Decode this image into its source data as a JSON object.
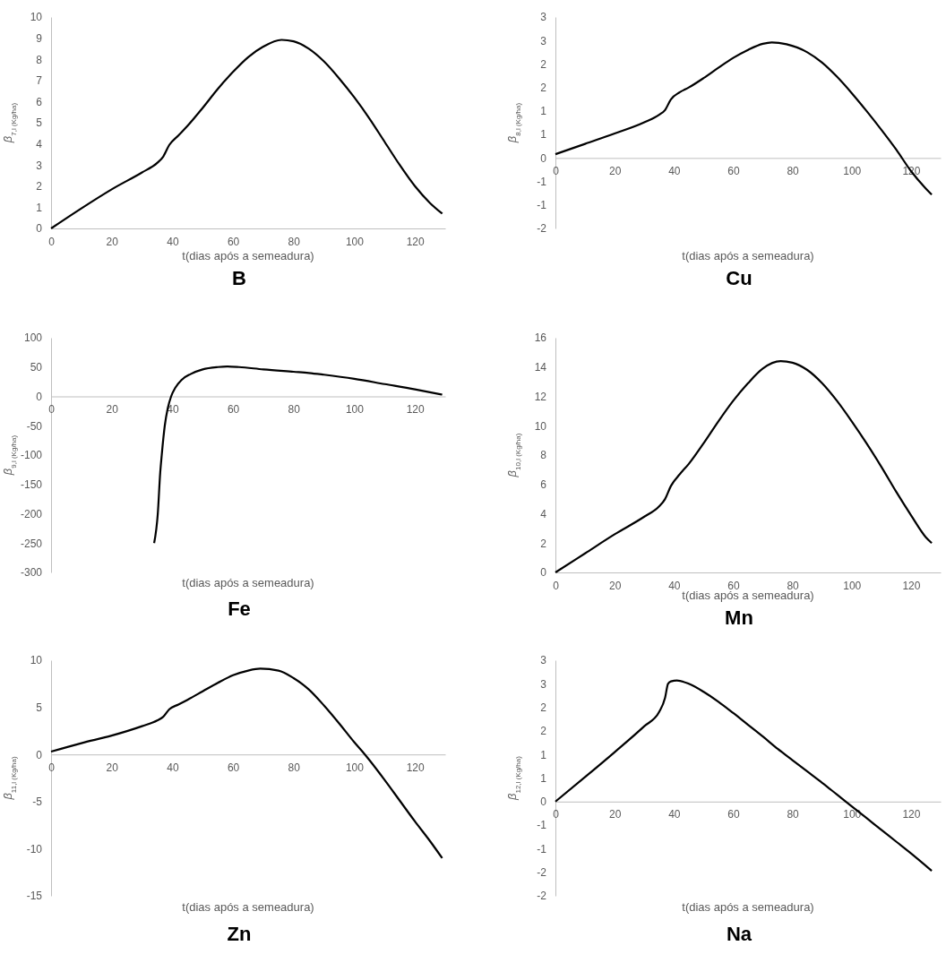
{
  "chart_data": [
    {
      "type": "line",
      "title": "B",
      "xlabel": "t(dias após a semeadura)",
      "ylabel": "β$_{7,l (Kg/ha)}$",
      "xlim": [
        0,
        130
      ],
      "xticks": [
        0,
        20,
        40,
        60,
        80,
        100,
        120
      ],
      "ylim": [
        0,
        10
      ],
      "yticks": [
        0,
        1,
        2,
        3,
        4,
        5,
        6,
        7,
        8,
        9,
        10
      ],
      "series": [
        {
          "color": "#000000",
          "x": [
            0,
            10,
            20,
            30,
            35,
            37,
            39,
            42,
            45,
            50,
            55,
            60,
            65,
            70,
            76,
            80,
            85,
            90,
            95,
            100,
            105,
            110,
            115,
            120,
            125,
            129
          ],
          "values": [
            0,
            0.95,
            1.85,
            2.65,
            3.1,
            3.4,
            3.95,
            4.4,
            4.85,
            5.7,
            6.6,
            7.4,
            8.1,
            8.6,
            8.92,
            8.85,
            8.5,
            7.9,
            7.1,
            6.2,
            5.2,
            4.1,
            3.0,
            2.0,
            1.2,
            0.7
          ]
        }
      ]
    },
    {
      "type": "line",
      "title": "Cu",
      "xlabel": "t(dias após a semeadura)",
      "ylabel": "β$_{8,l (Kg/ha)}$",
      "xlim": [
        0,
        130
      ],
      "xticks": [
        0,
        20,
        40,
        60,
        80,
        100,
        120
      ],
      "ylim": [
        -1.5,
        3
      ],
      "yticks": [
        {
          "value": -1.5,
          "label": "-2"
        },
        {
          "value": -1,
          "label": "-1"
        },
        {
          "value": -0.5,
          "label": "-1"
        },
        0,
        {
          "value": 0.5,
          "label": "1"
        },
        1,
        {
          "value": 1.5,
          "label": "2"
        },
        2,
        {
          "value": 2.5,
          "label": "3"
        },
        3
      ],
      "series": [
        {
          "color": "#000000",
          "x": [
            0,
            10,
            20,
            30,
            35,
            37,
            39,
            42,
            45,
            50,
            55,
            60,
            65,
            70,
            73,
            78,
            85,
            90,
            95,
            100,
            105,
            110,
            115,
            120,
            125,
            127
          ],
          "values": [
            0.08,
            0.3,
            0.52,
            0.76,
            0.92,
            1.02,
            1.25,
            1.4,
            1.5,
            1.7,
            1.92,
            2.13,
            2.3,
            2.43,
            2.46,
            2.42,
            2.25,
            2.03,
            1.73,
            1.38,
            1.0,
            0.6,
            0.18,
            -0.28,
            -0.65,
            -0.78
          ]
        }
      ]
    },
    {
      "type": "line",
      "title": "Fe",
      "xlabel": "t(dias após a semeadura)",
      "ylabel": "β$_{9,l (Kg/ha)}$",
      "xlim": [
        0,
        130
      ],
      "xticks": [
        0,
        20,
        40,
        60,
        80,
        100,
        120
      ],
      "ylim": [
        -300,
        100
      ],
      "yticks": [
        -300,
        -250,
        -200,
        -150,
        -100,
        -50,
        0,
        50,
        100
      ],
      "series": [
        {
          "color": "#000000",
          "x": [
            34,
            35.2,
            36,
            36.5,
            37.5,
            38.5,
            39.6,
            41,
            43,
            46,
            50,
            55,
            58,
            62,
            70,
            80,
            85,
            90,
            100,
            110,
            120,
            129
          ],
          "values": [
            -250,
            -200,
            -130,
            -100,
            -50,
            -20,
            0,
            15,
            28,
            38,
            46,
            50,
            51,
            50,
            46,
            42,
            40,
            37,
            30,
            21,
            12,
            3
          ]
        }
      ]
    },
    {
      "type": "line",
      "title": "Mn",
      "xlabel": "t(dias após a semeadura)",
      "ylabel": "β$_{10,l (Kg/ha)}$",
      "xlim": [
        0,
        130
      ],
      "xticks": [
        0,
        20,
        40,
        60,
        80,
        100,
        120
      ],
      "ylim": [
        0,
        16
      ],
      "yticks": [
        0,
        2,
        4,
        6,
        8,
        10,
        12,
        14,
        16
      ],
      "series": [
        {
          "color": "#000000",
          "x": [
            0,
            10,
            20,
            30,
            35,
            37,
            39,
            42,
            45,
            50,
            55,
            60,
            65,
            70,
            76,
            80,
            85,
            90,
            95,
            100,
            105,
            110,
            115,
            120,
            125,
            127
          ],
          "values": [
            0,
            1.3,
            2.6,
            3.8,
            4.5,
            5.0,
            5.9,
            6.7,
            7.4,
            8.8,
            10.3,
            11.7,
            12.9,
            13.9,
            14.4,
            14.3,
            13.8,
            12.9,
            11.7,
            10.3,
            8.8,
            7.2,
            5.5,
            3.9,
            2.4,
            2.0
          ]
        }
      ]
    },
    {
      "type": "line",
      "title": "Zn",
      "xlabel": "t(dias após a semeadura)",
      "ylabel": "β$_{11,l (Kg/ha)}$",
      "xlim": [
        0,
        130
      ],
      "xticks": [
        0,
        20,
        40,
        60,
        80,
        100,
        120
      ],
      "ylim": [
        -15,
        10
      ],
      "yticks": [
        -15,
        -10,
        -5,
        0,
        5,
        10
      ],
      "series": [
        {
          "color": "#000000",
          "x": [
            0,
            10,
            20,
            30,
            35,
            37,
            39,
            42,
            45,
            50,
            55,
            60,
            65,
            69,
            75,
            80,
            85,
            90,
            95,
            100,
            103.5,
            105,
            110,
            115,
            120,
            125,
            129
          ],
          "values": [
            0.3,
            1.2,
            2.0,
            3.0,
            3.6,
            4.0,
            4.8,
            5.3,
            5.8,
            6.7,
            7.6,
            8.4,
            8.9,
            9.1,
            8.9,
            8.1,
            6.9,
            5.2,
            3.3,
            1.3,
            0,
            -0.6,
            -2.7,
            -4.9,
            -7.1,
            -9.2,
            -11
          ]
        }
      ]
    },
    {
      "type": "line",
      "title": "Na",
      "xlabel": "t(dias após a semeadura)",
      "ylabel": "β$_{12,l (Kg/ha)}$",
      "xlim": [
        0,
        130
      ],
      "xticks": [
        0,
        20,
        40,
        60,
        80,
        100,
        120
      ],
      "ylim": [
        -2,
        3
      ],
      "yticks": [
        -2,
        {
          "value": -1.5,
          "label": "-2"
        },
        -1,
        {
          "value": -0.5,
          "label": "-1"
        },
        0,
        {
          "value": 0.5,
          "label": "1"
        },
        1,
        {
          "value": 1.5,
          "label": "2"
        },
        2,
        {
          "value": 2.5,
          "label": "3"
        },
        3
      ],
      "series": [
        {
          "color": "#000000",
          "x": [
            0,
            10,
            20,
            30,
            35,
            37,
            38,
            39,
            41,
            45,
            50,
            55,
            60,
            65,
            70,
            75,
            80,
            85,
            90,
            95,
            100,
            105,
            110,
            115,
            120,
            127
          ],
          "values": [
            0,
            0.52,
            1.05,
            1.6,
            1.9,
            2.2,
            2.5,
            2.55,
            2.57,
            2.5,
            2.33,
            2.12,
            1.88,
            1.63,
            1.38,
            1.12,
            0.88,
            0.64,
            0.4,
            0.15,
            -0.1,
            -0.35,
            -0.6,
            -0.85,
            -1.1,
            -1.47
          ]
        }
      ]
    }
  ]
}
